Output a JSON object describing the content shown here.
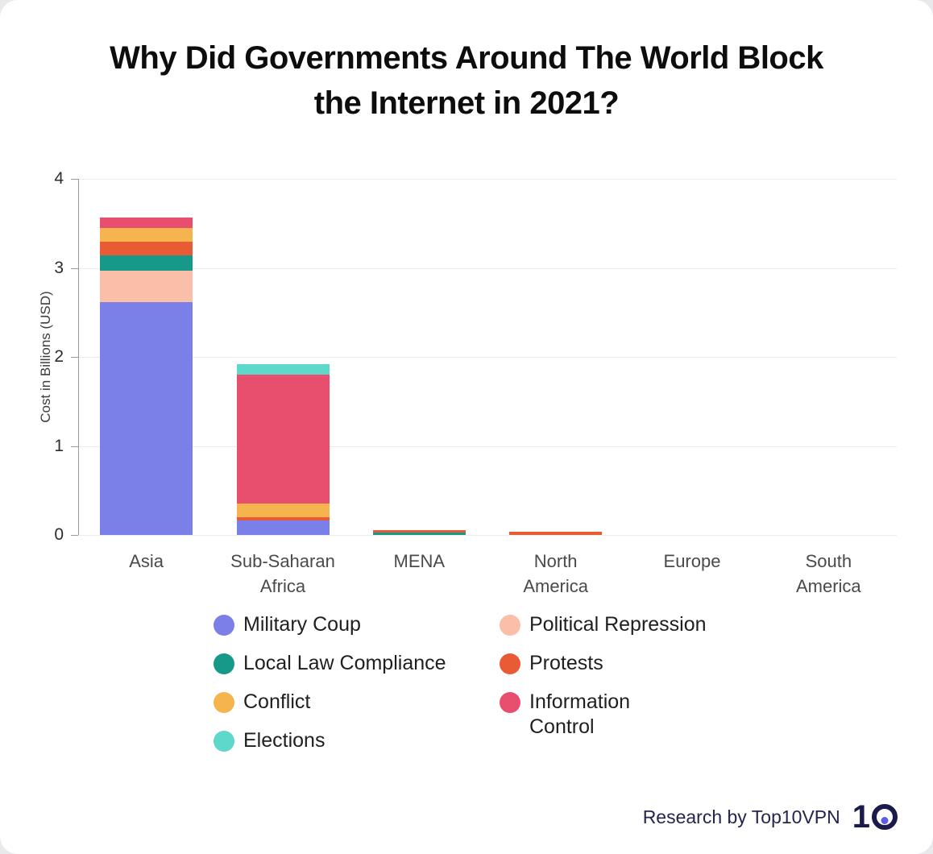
{
  "title": {
    "line1": "Why Did Governments Around The World Block",
    "line2": "the Internet in 2021?"
  },
  "chart_data": {
    "type": "bar",
    "stacked": true,
    "title": "Why Did Governments Around The World Block the Internet in 2021?",
    "xlabel": "",
    "ylabel": "Cost in Billions (USD)",
    "ylim": [
      0,
      4
    ],
    "yticks": [
      0,
      1,
      2,
      3,
      4
    ],
    "grid": true,
    "categories": [
      "Asia",
      "Sub-Saharan Africa",
      "MENA",
      "North America",
      "Europe",
      "South America"
    ],
    "tick_labels": [
      "Asia",
      "Sub-Saharan\nAfrica",
      "MENA",
      "North\nAmerica",
      "Europe",
      "South\nAmerica"
    ],
    "series": [
      {
        "name": "Military Coup",
        "color": "#7a80e8",
        "values": [
          2.62,
          0.16,
          0,
          0,
          0,
          0
        ]
      },
      {
        "name": "Political Repression",
        "color": "#f9bfa9",
        "values": [
          0.35,
          0,
          0,
          0,
          0,
          0
        ]
      },
      {
        "name": "Local Law Compliance",
        "color": "#17998a",
        "values": [
          0.17,
          0,
          0.03,
          0,
          0,
          0
        ]
      },
      {
        "name": "Protests",
        "color": "#e85b35",
        "values": [
          0.15,
          0.04,
          0.02,
          0.04,
          0,
          0
        ]
      },
      {
        "name": "Conflict",
        "color": "#f6b44e",
        "values": [
          0.16,
          0.15,
          0,
          0,
          0,
          0
        ]
      },
      {
        "name": "Information Control",
        "color": "#e84f6f",
        "values": [
          0.12,
          1.45,
          0,
          0,
          0,
          0
        ]
      },
      {
        "name": "Elections",
        "color": "#5fd8cc",
        "values": [
          0,
          0.12,
          0,
          0,
          0,
          0
        ]
      }
    ],
    "legend_position": "bottom",
    "legend_columns": [
      [
        "Military Coup",
        "Local Law Compliance",
        "Conflict",
        "Elections"
      ],
      [
        "Political Repression",
        "Protests",
        "Information\nControl"
      ]
    ]
  },
  "footer": {
    "credit": "Research by Top10VPN",
    "logo_text": "1"
  }
}
